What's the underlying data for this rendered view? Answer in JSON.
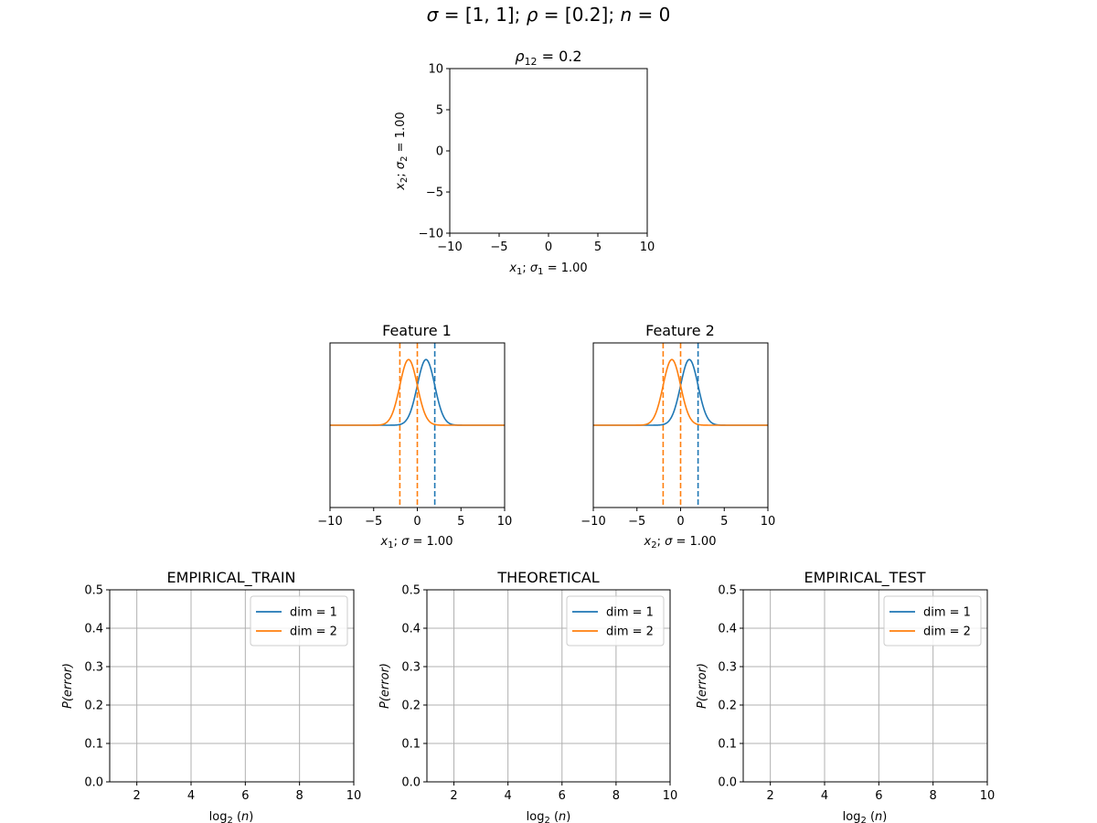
{
  "suptitle": {
    "sigma": "[1, 1]",
    "rho": "[0.2]",
    "n": "0"
  },
  "chart_data": [
    {
      "id": "scatter",
      "type": "scatter",
      "title_sub": "12",
      "title_value": "= 0.2",
      "xlabel": {
        "var_sub": "1",
        "sigma_sub": "1",
        "value": "= 1.00"
      },
      "ylabel": {
        "var_sub": "2",
        "sigma_sub": "2",
        "value": "= 1.00"
      },
      "xlim": [
        -10,
        10
      ],
      "ylim": [
        -10,
        10
      ],
      "xticks": [
        -10,
        -5,
        0,
        5,
        10
      ],
      "yticks": [
        -10,
        -5,
        0,
        5,
        10
      ],
      "points": []
    },
    {
      "id": "feature1",
      "type": "line",
      "title": "Feature 1",
      "xlabel": {
        "var_sub": "1",
        "value": "= 1.00"
      },
      "xlim": [
        -10,
        10
      ],
      "ylim": [
        -0.5,
        0.5
      ],
      "xticks": [
        -10,
        -5,
        0,
        5,
        10
      ],
      "series": [
        {
          "mean": 1,
          "sigma": 1,
          "color": "#1f77b4"
        },
        {
          "mean": -1,
          "sigma": 1,
          "color": "#ff7f0e"
        }
      ],
      "vlines": [
        {
          "x": 2,
          "color": "#1f77b4"
        },
        {
          "x": -2,
          "color": "#ff7f0e"
        },
        {
          "x": 0,
          "color": "#ff7f0e"
        }
      ]
    },
    {
      "id": "feature2",
      "type": "line",
      "title": "Feature 2",
      "xlabel": {
        "var_sub": "2",
        "value": "= 1.00"
      },
      "xlim": [
        -10,
        10
      ],
      "ylim": [
        -0.5,
        0.5
      ],
      "xticks": [
        -10,
        -5,
        0,
        5,
        10
      ],
      "series": [
        {
          "mean": 1,
          "sigma": 1,
          "color": "#1f77b4"
        },
        {
          "mean": -1,
          "sigma": 1,
          "color": "#ff7f0e"
        }
      ],
      "vlines": [
        {
          "x": 2,
          "color": "#1f77b4"
        },
        {
          "x": -2,
          "color": "#ff7f0e"
        },
        {
          "x": 0,
          "color": "#ff7f0e"
        }
      ]
    },
    {
      "id": "empirical_train",
      "type": "line",
      "title": "EMPIRICAL_TRAIN",
      "ylabel": "P(error)",
      "xlim": [
        1,
        10
      ],
      "ylim": [
        0,
        0.5
      ],
      "xticks": [
        2,
        4,
        6,
        8,
        10
      ],
      "yticks": [
        "0.0",
        "0.1",
        "0.2",
        "0.3",
        "0.4",
        "0.5"
      ],
      "grid": true,
      "legend_position": "upper right",
      "series": [
        {
          "name": "dim = 1",
          "color": "#1f77b4",
          "x": [],
          "y": []
        },
        {
          "name": "dim = 2",
          "color": "#ff7f0e",
          "x": [],
          "y": []
        }
      ]
    },
    {
      "id": "theoretical",
      "type": "line",
      "title": "THEORETICAL",
      "ylabel": "P(error)",
      "xlim": [
        1,
        10
      ],
      "ylim": [
        0,
        0.5
      ],
      "xticks": [
        2,
        4,
        6,
        8,
        10
      ],
      "yticks": [
        "0.0",
        "0.1",
        "0.2",
        "0.3",
        "0.4",
        "0.5"
      ],
      "grid": true,
      "legend_position": "upper right",
      "series": [
        {
          "name": "dim = 1",
          "color": "#1f77b4",
          "x": [],
          "y": []
        },
        {
          "name": "dim = 2",
          "color": "#ff7f0e",
          "x": [],
          "y": []
        }
      ]
    },
    {
      "id": "empirical_test",
      "type": "line",
      "title": "EMPIRICAL_TEST",
      "ylabel": "P(error)",
      "xlim": [
        1,
        10
      ],
      "ylim": [
        0,
        0.5
      ],
      "xticks": [
        2,
        4,
        6,
        8,
        10
      ],
      "yticks": [
        "0.0",
        "0.1",
        "0.2",
        "0.3",
        "0.4",
        "0.5"
      ],
      "grid": true,
      "legend_position": "upper right",
      "series": [
        {
          "name": "dim = 1",
          "color": "#1f77b4",
          "x": [],
          "y": []
        },
        {
          "name": "dim = 2",
          "color": "#ff7f0e",
          "x": [],
          "y": []
        }
      ]
    }
  ]
}
